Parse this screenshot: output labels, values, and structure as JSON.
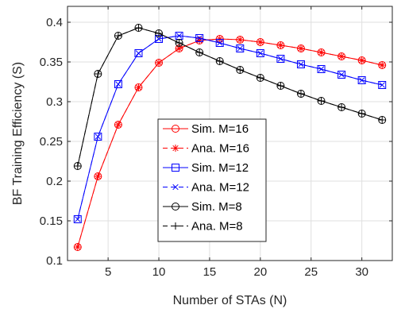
{
  "chart_data": {
    "type": "line",
    "xlabel": "Number of STAs (N)",
    "ylabel": "BF Training Efficiency (S)",
    "xlim": [
      1,
      33
    ],
    "ylim": [
      0.1,
      0.42
    ],
    "xticks": [
      5,
      10,
      15,
      20,
      25,
      30
    ],
    "yticks": [
      0.1,
      0.15,
      0.2,
      0.25,
      0.3,
      0.35,
      0.4
    ],
    "ytick_labels": [
      "0.1",
      "0.15",
      "0.2",
      "0.25",
      "0.3",
      "0.35",
      "0.4"
    ],
    "grid": true,
    "legend_position": "center",
    "x": [
      2,
      4,
      6,
      8,
      10,
      12,
      14,
      16,
      18,
      20,
      22,
      24,
      26,
      28,
      30,
      32
    ],
    "series": [
      {
        "name": "Sim. M=16",
        "color": "#ff0000",
        "marker": "circle",
        "dash": "solid",
        "values": [
          0.117,
          0.206,
          0.271,
          0.318,
          0.349,
          0.367,
          0.377,
          0.379,
          0.378,
          0.375,
          0.371,
          0.367,
          0.362,
          0.357,
          0.352,
          0.346
        ]
      },
      {
        "name": "Ana. M=16",
        "color": "#ff0000",
        "marker": "asterisk",
        "dash": "dashed",
        "values": [
          0.117,
          0.206,
          0.271,
          0.318,
          0.349,
          0.367,
          0.377,
          0.379,
          0.378,
          0.375,
          0.371,
          0.367,
          0.362,
          0.357,
          0.352,
          0.346
        ]
      },
      {
        "name": "Sim. M=12",
        "color": "#0000ff",
        "marker": "square",
        "dash": "solid",
        "values": [
          0.152,
          0.256,
          0.322,
          0.361,
          0.379,
          0.383,
          0.38,
          0.374,
          0.367,
          0.361,
          0.354,
          0.347,
          0.341,
          0.334,
          0.327,
          0.321
        ]
      },
      {
        "name": "Ana. M=12",
        "color": "#0000ff",
        "marker": "x",
        "dash": "dashed",
        "values": [
          0.152,
          0.256,
          0.322,
          0.361,
          0.379,
          0.383,
          0.38,
          0.374,
          0.367,
          0.361,
          0.354,
          0.347,
          0.341,
          0.334,
          0.327,
          0.321
        ]
      },
      {
        "name": "Sim. M=8",
        "color": "#000000",
        "marker": "circle",
        "dash": "solid",
        "values": [
          0.219,
          0.335,
          0.383,
          0.393,
          0.386,
          0.374,
          0.362,
          0.351,
          0.34,
          0.33,
          0.32,
          0.31,
          0.301,
          0.293,
          0.285,
          0.277
        ]
      },
      {
        "name": "Ana. M=8",
        "color": "#000000",
        "marker": "plus",
        "dash": "dashed",
        "values": [
          0.219,
          0.335,
          0.383,
          0.393,
          0.386,
          0.374,
          0.362,
          0.351,
          0.34,
          0.33,
          0.32,
          0.31,
          0.301,
          0.293,
          0.285,
          0.277
        ]
      }
    ]
  }
}
